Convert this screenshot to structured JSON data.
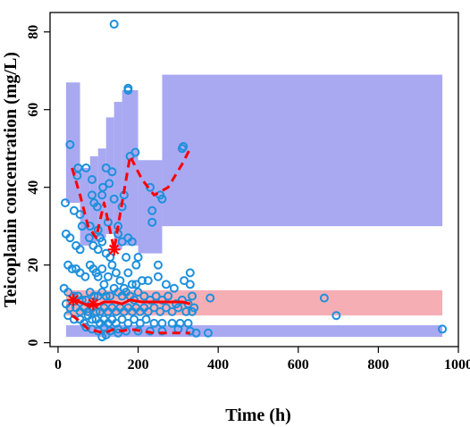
{
  "chart_data": {
    "type": "scatter",
    "title": "",
    "xlabel": "Time (h)",
    "ylabel": "Teicoplanin concentration (mg/L)",
    "xlim": [
      -20,
      1000
    ],
    "ylim": [
      -1,
      85
    ],
    "xticks": [
      0,
      200,
      400,
      600,
      800,
      1000
    ],
    "yticks": [
      0,
      20,
      40,
      60,
      80
    ],
    "grid": false,
    "legend": "none",
    "colors": {
      "observations": "#1e90dc",
      "upper_band": "#9a9af0",
      "median_band": "#f4a0a8",
      "lower_band": "#9a9af0",
      "lines": "#ff0000"
    },
    "bands": [
      {
        "name": "upper-pi",
        "bins": [
          {
            "x0": 20,
            "x1": 55,
            "lo": 36,
            "hi": 67
          },
          {
            "x0": 55,
            "x1": 80,
            "lo": 25,
            "hi": 45
          },
          {
            "x0": 80,
            "x1": 100,
            "lo": 26,
            "hi": 48
          },
          {
            "x0": 100,
            "x1": 120,
            "lo": 27,
            "hi": 50
          },
          {
            "x0": 120,
            "x1": 140,
            "lo": 28,
            "hi": 58
          },
          {
            "x0": 140,
            "x1": 160,
            "lo": 24,
            "hi": 62
          },
          {
            "x0": 160,
            "x1": 200,
            "lo": 25,
            "hi": 65
          },
          {
            "x0": 200,
            "x1": 260,
            "lo": 23,
            "hi": 47
          },
          {
            "x0": 260,
            "x1": 960,
            "lo": 30,
            "hi": 69
          }
        ]
      },
      {
        "name": "median-pi",
        "bins": [
          {
            "x0": 20,
            "x1": 960,
            "lo": 7,
            "hi": 13.5
          }
        ]
      },
      {
        "name": "lower-pi",
        "bins": [
          {
            "x0": 20,
            "x1": 960,
            "lo": 1.5,
            "hi": 4.5
          }
        ]
      }
    ],
    "lines": [
      {
        "name": "upper-percentile",
        "style": "dashed",
        "x": [
          35,
          55,
          75,
          95,
          115,
          140,
          160,
          180,
          210,
          240,
          275,
          310,
          330
        ],
        "y": [
          45,
          38,
          30,
          27,
          36,
          24,
          36,
          48,
          42,
          38,
          40,
          46,
          50
        ]
      },
      {
        "name": "median",
        "style": "solid",
        "x": [
          35,
          55,
          75,
          95,
          115,
          140,
          160,
          180,
          210,
          240,
          275,
          310,
          330
        ],
        "y": [
          11,
          10.5,
          9.5,
          9.5,
          10.5,
          10.5,
          10,
          11,
          10.5,
          10.5,
          10.5,
          10.5,
          10
        ]
      },
      {
        "name": "lower-percentile",
        "style": "dashed",
        "x": [
          35,
          55,
          75,
          95,
          115,
          140,
          160,
          180,
          210,
          240,
          275,
          310,
          330
        ],
        "y": [
          7,
          5.5,
          3.5,
          3,
          2.5,
          3.5,
          3,
          3.5,
          3,
          2.5,
          2.5,
          2.5,
          2.5
        ]
      }
    ],
    "markers": [
      {
        "x": 38,
        "y": 11
      },
      {
        "x": 140,
        "y": 24
      },
      {
        "x": 88,
        "y": 10
      }
    ],
    "points": [
      [
        140,
        82
      ],
      [
        175,
        65
      ],
      [
        175,
        65.5
      ],
      [
        30,
        51
      ],
      [
        310,
        50
      ],
      [
        313,
        50.5
      ],
      [
        180,
        48
      ],
      [
        193,
        49
      ],
      [
        50,
        45
      ],
      [
        120,
        45
      ],
      [
        48,
        43
      ],
      [
        70,
        45
      ],
      [
        85,
        42
      ],
      [
        112,
        40
      ],
      [
        135,
        44
      ],
      [
        128,
        41
      ],
      [
        85,
        38
      ],
      [
        90,
        36
      ],
      [
        98,
        35
      ],
      [
        110,
        38
      ],
      [
        140,
        37
      ],
      [
        160,
        35
      ],
      [
        165,
        38
      ],
      [
        230,
        40
      ],
      [
        255,
        38
      ],
      [
        260,
        37
      ],
      [
        235,
        34
      ],
      [
        235,
        31
      ],
      [
        18,
        36
      ],
      [
        40,
        34
      ],
      [
        55,
        33
      ],
      [
        60,
        30
      ],
      [
        80,
        30
      ],
      [
        100,
        29
      ],
      [
        105,
        27
      ],
      [
        125,
        31
      ],
      [
        150,
        28
      ],
      [
        160,
        26
      ],
      [
        175,
        27
      ],
      [
        185,
        26
      ],
      [
        150,
        30
      ],
      [
        20,
        28
      ],
      [
        30,
        27
      ],
      [
        45,
        25
      ],
      [
        55,
        24
      ],
      [
        78,
        27
      ],
      [
        88,
        25
      ],
      [
        100,
        24
      ],
      [
        110,
        26
      ],
      [
        120,
        23
      ],
      [
        130,
        22
      ],
      [
        170,
        22
      ],
      [
        195,
        20
      ],
      [
        200,
        22
      ],
      [
        250,
        20
      ],
      [
        25,
        20
      ],
      [
        35,
        19
      ],
      [
        45,
        19
      ],
      [
        55,
        18
      ],
      [
        68,
        17
      ],
      [
        80,
        20
      ],
      [
        88,
        19
      ],
      [
        95,
        18
      ],
      [
        100,
        17
      ],
      [
        110,
        19
      ],
      [
        115,
        15
      ],
      [
        125,
        17
      ],
      [
        135,
        20
      ],
      [
        145,
        18
      ],
      [
        155,
        16
      ],
      [
        165,
        14
      ],
      [
        175,
        18
      ],
      [
        185,
        15
      ],
      [
        195,
        15
      ],
      [
        210,
        16
      ],
      [
        225,
        16
      ],
      [
        250,
        17
      ],
      [
        270,
        15
      ],
      [
        290,
        14
      ],
      [
        315,
        16
      ],
      [
        330,
        18
      ],
      [
        330,
        15
      ],
      [
        335,
        12
      ],
      [
        15,
        14
      ],
      [
        25,
        13
      ],
      [
        40,
        12
      ],
      [
        50,
        12
      ],
      [
        60,
        11
      ],
      [
        70,
        11
      ],
      [
        80,
        13
      ],
      [
        90,
        12
      ],
      [
        100,
        12
      ],
      [
        110,
        13
      ],
      [
        120,
        12
      ],
      [
        130,
        12
      ],
      [
        140,
        14
      ],
      [
        150,
        13
      ],
      [
        160,
        12
      ],
      [
        170,
        13
      ],
      [
        180,
        12
      ],
      [
        190,
        11
      ],
      [
        200,
        13
      ],
      [
        215,
        12
      ],
      [
        230,
        11
      ],
      [
        245,
        12
      ],
      [
        260,
        11
      ],
      [
        275,
        12
      ],
      [
        295,
        10
      ],
      [
        310,
        11
      ],
      [
        325,
        10
      ],
      [
        20,
        10
      ],
      [
        30,
        9
      ],
      [
        45,
        9
      ],
      [
        55,
        8
      ],
      [
        65,
        9
      ],
      [
        75,
        8
      ],
      [
        85,
        9
      ],
      [
        95,
        8
      ],
      [
        105,
        8
      ],
      [
        115,
        9
      ],
      [
        125,
        8
      ],
      [
        135,
        9
      ],
      [
        145,
        8
      ],
      [
        155,
        9
      ],
      [
        165,
        8
      ],
      [
        175,
        9
      ],
      [
        185,
        8
      ],
      [
        195,
        9
      ],
      [
        205,
        8
      ],
      [
        215,
        9
      ],
      [
        225,
        8
      ],
      [
        240,
        9
      ],
      [
        255,
        8
      ],
      [
        270,
        9
      ],
      [
        285,
        8
      ],
      [
        300,
        9
      ],
      [
        320,
        8
      ],
      [
        335,
        8
      ],
      [
        25,
        7
      ],
      [
        40,
        6
      ],
      [
        55,
        6
      ],
      [
        65,
        5
      ],
      [
        75,
        7
      ],
      [
        85,
        6
      ],
      [
        95,
        6
      ],
      [
        105,
        5
      ],
      [
        115,
        6
      ],
      [
        125,
        5
      ],
      [
        135,
        6
      ],
      [
        145,
        5
      ],
      [
        160,
        6
      ],
      [
        175,
        5
      ],
      [
        190,
        6
      ],
      [
        205,
        5
      ],
      [
        220,
        6
      ],
      [
        240,
        5
      ],
      [
        260,
        5
      ],
      [
        285,
        5
      ],
      [
        305,
        5
      ],
      [
        325,
        5
      ],
      [
        340,
        9
      ],
      [
        70,
        4
      ],
      [
        85,
        3.5
      ],
      [
        100,
        3
      ],
      [
        115,
        4
      ],
      [
        130,
        3
      ],
      [
        150,
        3.5
      ],
      [
        170,
        3
      ],
      [
        200,
        3
      ],
      [
        230,
        3
      ],
      [
        260,
        3
      ],
      [
        300,
        3.5
      ],
      [
        330,
        3
      ],
      [
        345,
        2.5
      ],
      [
        375,
        2.5
      ],
      [
        380,
        11.5
      ],
      [
        120,
        2
      ],
      [
        150,
        2.5
      ],
      [
        110,
        1.5
      ],
      [
        665,
        11.5
      ],
      [
        695,
        7
      ],
      [
        960,
        3.5
      ]
    ]
  }
}
